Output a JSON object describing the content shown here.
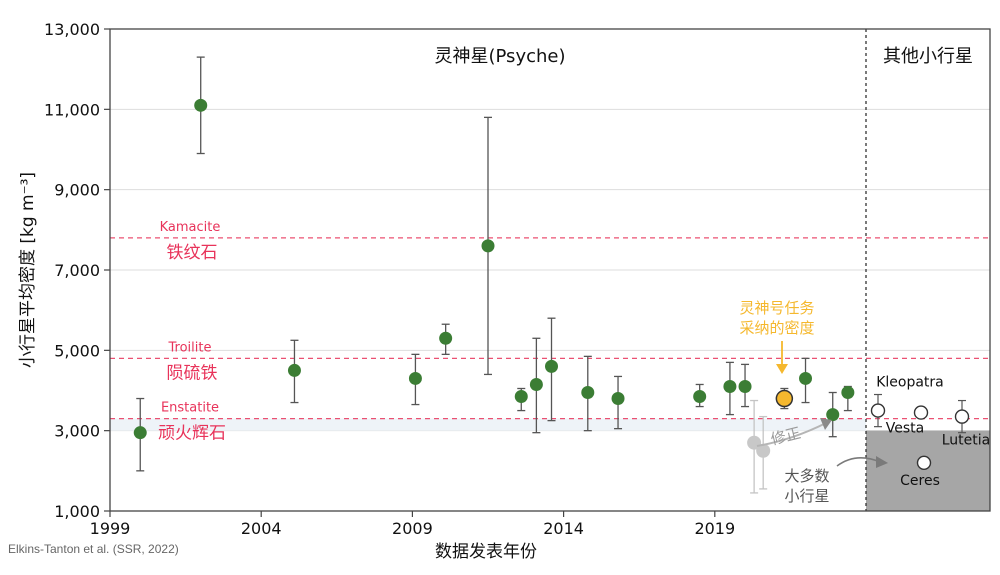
{
  "chart_data": {
    "type": "scatter",
    "title_left": "灵神星(Psyche)",
    "title_right": "其他小行星",
    "xlabel": "数据发表年份",
    "ylabel": "小行星平均密度 [kg m⁻³]",
    "xlim": [
      1999,
      2024
    ],
    "ylim": [
      1000,
      13000
    ],
    "x_ticks": [
      1999,
      2004,
      2009,
      2014,
      2019
    ],
    "y_ticks": [
      1000,
      3000,
      5000,
      7000,
      9000,
      11000,
      13000
    ],
    "y_tick_labels": [
      "1,000",
      "3,000",
      "5,000",
      "7,000",
      "9,000",
      "11,000",
      "13,000"
    ],
    "grid": "horizontal",
    "reference_lines": [
      {
        "value": 7800,
        "name": "Kamacite",
        "label_cn": "铁纹石"
      },
      {
        "value": 4800,
        "name": "Troilite",
        "label_cn": "陨硫铁"
      },
      {
        "value": 3300,
        "name": "Enstatite",
        "label_cn": "顽火辉石"
      }
    ],
    "psyche_estimates": [
      {
        "year": 2000.0,
        "density": 2950,
        "low": 2000,
        "high": 3800
      },
      {
        "year": 2002.0,
        "density": 11100,
        "low": 9900,
        "high": 12300
      },
      {
        "year": 2005.1,
        "density": 4500,
        "low": 3700,
        "high": 5250
      },
      {
        "year": 2009.1,
        "density": 4300,
        "low": 3650,
        "high": 4900
      },
      {
        "year": 2010.1,
        "density": 5300,
        "low": 4900,
        "high": 5650
      },
      {
        "year": 2011.5,
        "density": 7600,
        "low": 4400,
        "high": 10800
      },
      {
        "year": 2012.6,
        "density": 3850,
        "low": 3500,
        "high": 4050
      },
      {
        "year": 2013.1,
        "density": 4150,
        "low": 2950,
        "high": 5300
      },
      {
        "year": 2013.6,
        "density": 4600,
        "low": 3250,
        "high": 5800
      },
      {
        "year": 2014.8,
        "density": 3950,
        "low": 3000,
        "high": 4850
      },
      {
        "year": 2015.8,
        "density": 3800,
        "low": 3050,
        "high": 4350
      },
      {
        "year": 2018.5,
        "density": 3850,
        "low": 3600,
        "high": 4150
      },
      {
        "year": 2019.5,
        "density": 4100,
        "low": 3400,
        "high": 4700
      },
      {
        "year": 2020.0,
        "density": 4100,
        "low": 3600,
        "high": 4650
      },
      {
        "year": 2022.0,
        "density": 4300,
        "low": 3700,
        "high": 4800
      },
      {
        "year": 2022.9,
        "density": 3400,
        "low": 2850,
        "high": 3950
      },
      {
        "year": 2023.4,
        "density": 3950,
        "low": 3500,
        "high": 4100
      }
    ],
    "adopted_value": {
      "year": 2021.3,
      "density": 3800,
      "low": 3550,
      "high": 4050,
      "label_line1": "灵神号任务",
      "label_line2": "采纳的密度",
      "color": "#f5b82e"
    },
    "corrected_estimates": [
      {
        "year": 2020.3,
        "density": 2700,
        "low": 1450,
        "high": 3750
      },
      {
        "year": 2020.6,
        "density": 2500,
        "low": 1550,
        "high": 3350
      }
    ],
    "correction_label": "修正",
    "asteroid_zone": {
      "top": 3000,
      "label_line1": "大多数",
      "label_line2": "小行星",
      "color": "#a6a6a6"
    },
    "other_asteroids": [
      {
        "name": "Kleopatra",
        "density": 3500,
        "low": 3100,
        "high": 3900
      },
      {
        "name": "Vesta",
        "density": 3450,
        "low": 3400,
        "high": 3500
      },
      {
        "name": "Lutetia",
        "density": 3350,
        "low": 2950,
        "high": 3750
      },
      {
        "name": "Ceres",
        "density": 2200,
        "low": 2150,
        "high": 2250
      }
    ],
    "colors": {
      "psyche_point": "#3b7d34",
      "reference_line": "#e8335a",
      "error_bar": "#555555",
      "corrected_point": "#c8c8c8",
      "correction_arrow": "#7a7a7a"
    }
  },
  "credit": "Elkins-Tanton et al. (SSR, 2022)"
}
